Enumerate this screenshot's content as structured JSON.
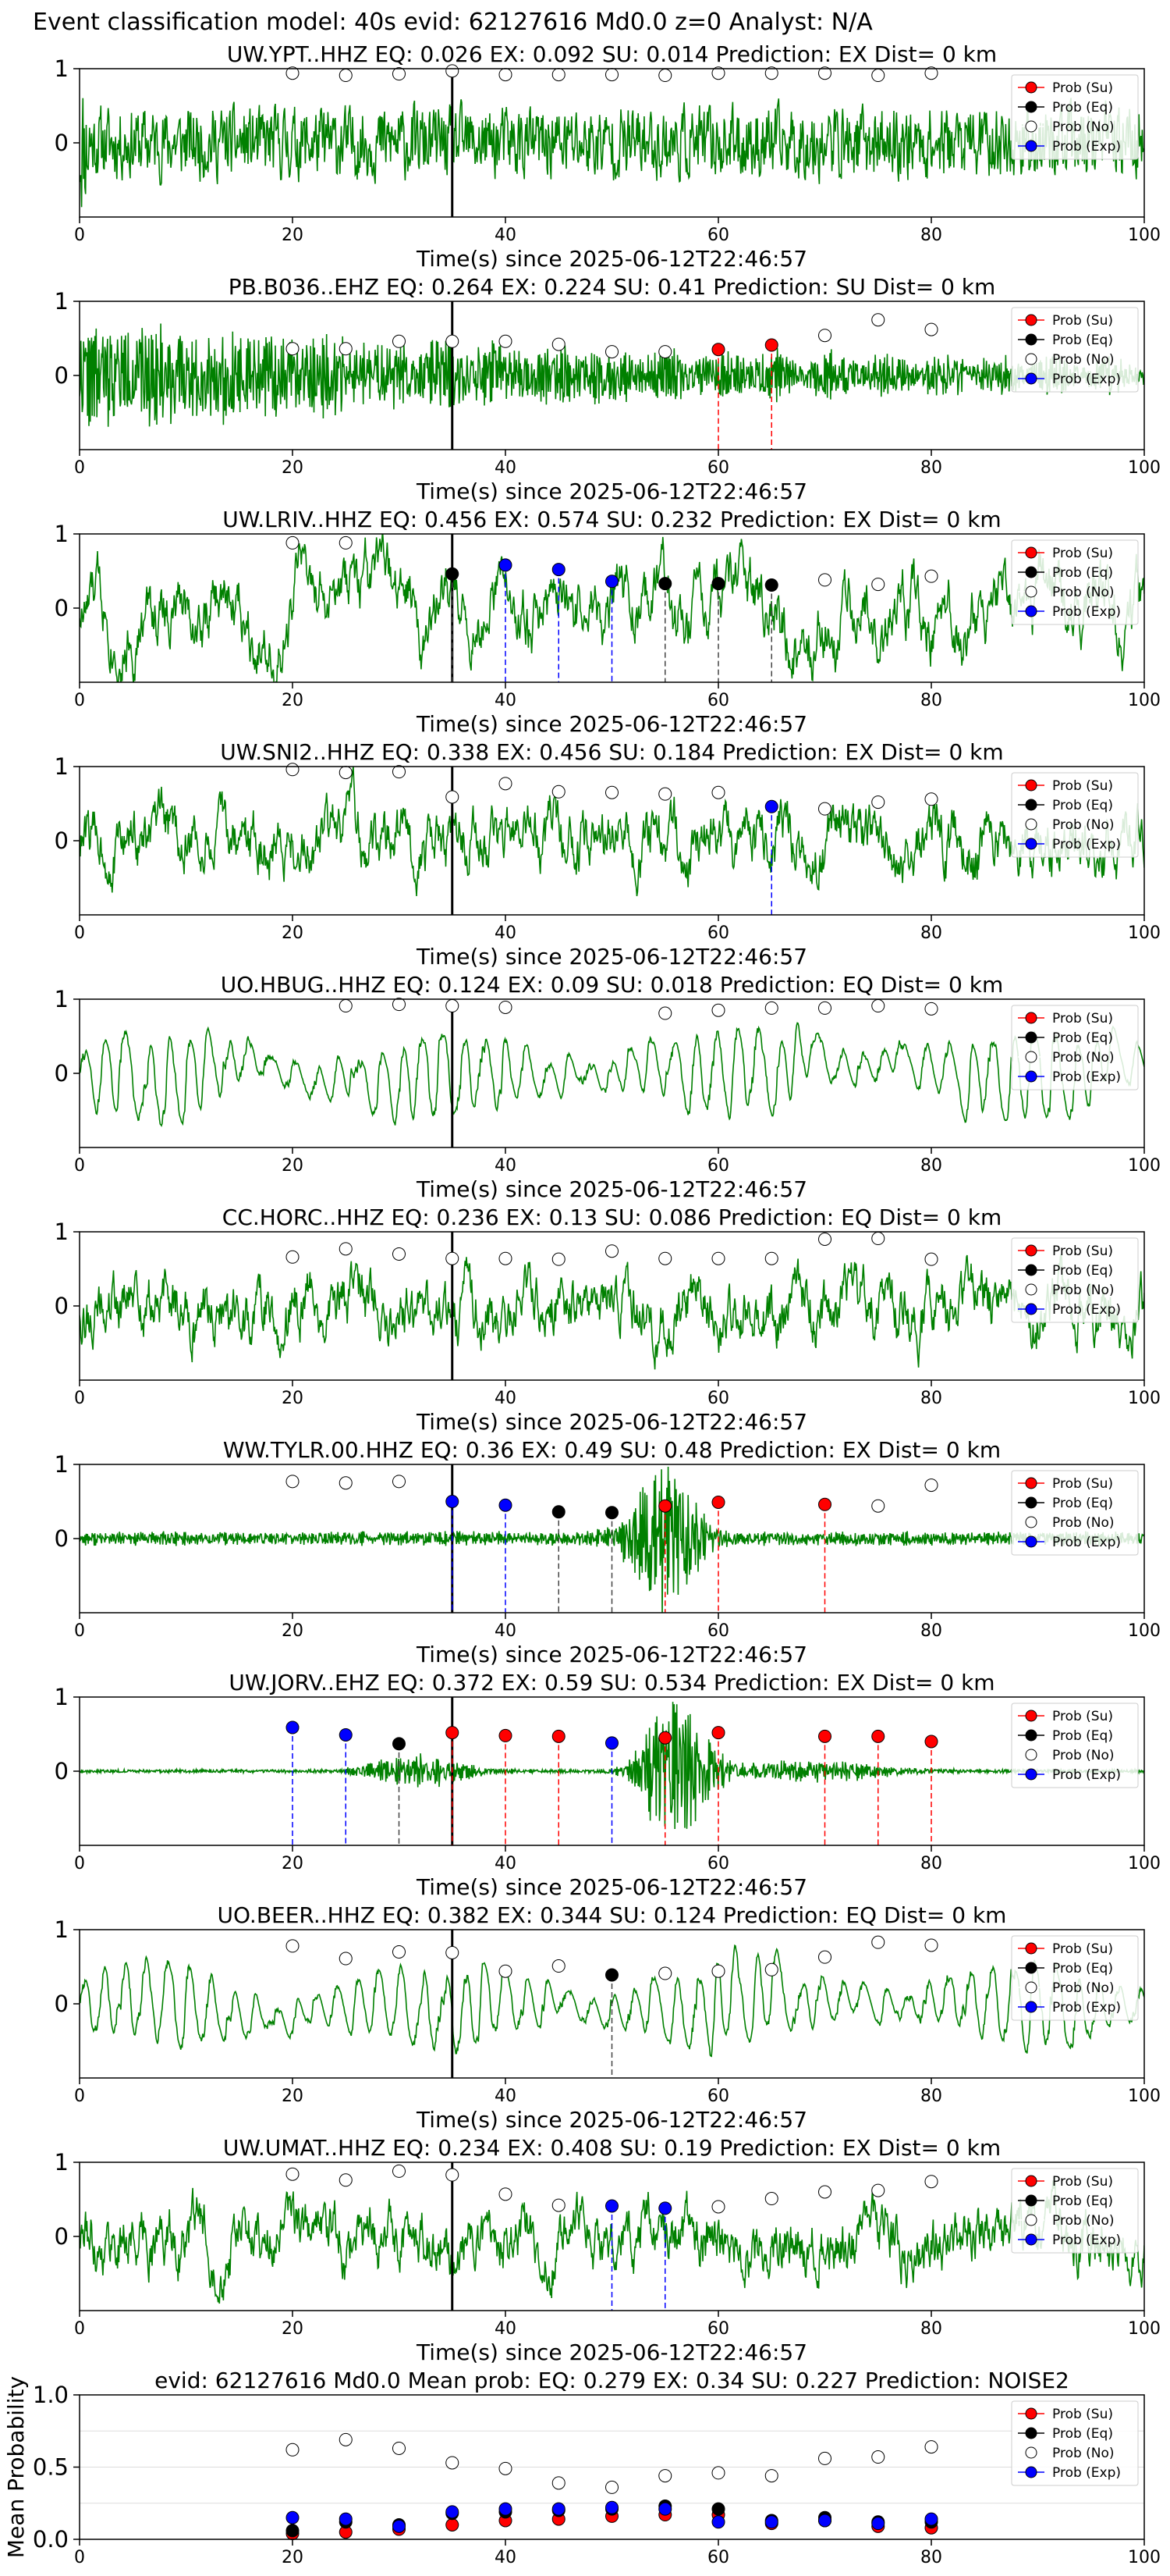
{
  "figure_title": "Event classification model: 40s evid: 62127616 Md0.0 z=0 Analyst: N/A",
  "colors": {
    "waveform": "#008000",
    "su": "#ff0000",
    "eq": "#000000",
    "no": "#ffffff",
    "exp": "#0000ff",
    "origin_line": "#000000"
  },
  "legend_labels": [
    "Prob (Su)",
    "Prob (Eq)",
    "Prob (No)",
    "Prob (Exp)"
  ],
  "chart_data": [
    {
      "type": "line",
      "title": "UW.YPT..HHZ   EQ: 0.026  EX: 0.092  SU: 0.014   Prediction: EX    Dist= 0 km",
      "xlabel": "Time(s) since 2025-06-12T22:46:57",
      "xlim": [
        0,
        100
      ],
      "ylim": [
        -1,
        1
      ],
      "xticks": [
        0,
        20,
        40,
        60,
        80,
        100
      ],
      "yticks": [
        0,
        1
      ],
      "origin_time": 35,
      "legend": "right",
      "seed": 11,
      "trace_style": "noise_ramp",
      "prob_points": [
        {
          "x": 20,
          "y": 0.94,
          "class": "no"
        },
        {
          "x": 25,
          "y": 0.91,
          "class": "no"
        },
        {
          "x": 30,
          "y": 0.93,
          "class": "no"
        },
        {
          "x": 35,
          "y": 0.97,
          "class": "no"
        },
        {
          "x": 40,
          "y": 0.92,
          "class": "no"
        },
        {
          "x": 45,
          "y": 0.92,
          "class": "no"
        },
        {
          "x": 50,
          "y": 0.92,
          "class": "no"
        },
        {
          "x": 55,
          "y": 0.91,
          "class": "no"
        },
        {
          "x": 60,
          "y": 0.94,
          "class": "no"
        },
        {
          "x": 65,
          "y": 0.94,
          "class": "no"
        },
        {
          "x": 70,
          "y": 0.94,
          "class": "no"
        },
        {
          "x": 75,
          "y": 0.91,
          "class": "no"
        },
        {
          "x": 80,
          "y": 0.94,
          "class": "no"
        }
      ]
    },
    {
      "type": "line",
      "title": "PB.B036..EHZ   EQ: 0.264  EX: 0.224  SU: 0.41   Prediction: SU    Dist= 0 km",
      "xlabel": "Time(s) since 2025-06-12T22:46:57",
      "xlim": [
        0,
        100
      ],
      "ylim": [
        -1,
        1
      ],
      "xticks": [
        0,
        20,
        40,
        60,
        80,
        100
      ],
      "yticks": [
        0,
        1
      ],
      "origin_time": 35,
      "legend": "right",
      "seed": 22,
      "trace_style": "hf_decay",
      "prob_points": [
        {
          "x": 20,
          "y": 0.36,
          "class": "no"
        },
        {
          "x": 25,
          "y": 0.36,
          "class": "no"
        },
        {
          "x": 30,
          "y": 0.46,
          "class": "no"
        },
        {
          "x": 35,
          "y": 0.46,
          "class": "no"
        },
        {
          "x": 40,
          "y": 0.46,
          "class": "no"
        },
        {
          "x": 45,
          "y": 0.42,
          "class": "no"
        },
        {
          "x": 50,
          "y": 0.32,
          "class": "no"
        },
        {
          "x": 55,
          "y": 0.32,
          "class": "no"
        },
        {
          "x": 60,
          "y": 0.35,
          "class": "su"
        },
        {
          "x": 65,
          "y": 0.41,
          "class": "su"
        },
        {
          "x": 70,
          "y": 0.54,
          "class": "no"
        },
        {
          "x": 75,
          "y": 0.75,
          "class": "no"
        },
        {
          "x": 80,
          "y": 0.62,
          "class": "no"
        }
      ]
    },
    {
      "type": "line",
      "title": "UW.LRIV..HHZ   EQ: 0.456  EX: 0.574  SU: 0.232   Prediction: EX    Dist= 0 km",
      "xlabel": "Time(s) since 2025-06-12T22:46:57",
      "xlim": [
        0,
        100
      ],
      "ylim": [
        -1,
        1
      ],
      "xticks": [
        0,
        20,
        40,
        60,
        80,
        100
      ],
      "yticks": [
        0,
        1
      ],
      "origin_time": 35,
      "legend": "right",
      "seed": 33,
      "trace_style": "lowfreq",
      "prob_points": [
        {
          "x": 20,
          "y": 0.88,
          "class": "no"
        },
        {
          "x": 25,
          "y": 0.88,
          "class": "no"
        },
        {
          "x": 35,
          "y": 0.46,
          "class": "eq"
        },
        {
          "x": 40,
          "y": 0.58,
          "class": "exp"
        },
        {
          "x": 45,
          "y": 0.52,
          "class": "exp"
        },
        {
          "x": 50,
          "y": 0.36,
          "class": "exp"
        },
        {
          "x": 55,
          "y": 0.33,
          "class": "eq"
        },
        {
          "x": 60,
          "y": 0.33,
          "class": "eq"
        },
        {
          "x": 65,
          "y": 0.31,
          "class": "eq"
        },
        {
          "x": 70,
          "y": 0.38,
          "class": "no"
        },
        {
          "x": 75,
          "y": 0.32,
          "class": "no"
        },
        {
          "x": 80,
          "y": 0.43,
          "class": "no"
        }
      ]
    },
    {
      "type": "line",
      "title": "UW.SNI2..HHZ   EQ: 0.338  EX: 0.456  SU: 0.184   Prediction: EX    Dist= 0 km",
      "xlabel": "Time(s) since 2025-06-12T22:46:57",
      "xlim": [
        0,
        100
      ],
      "ylim": [
        -1,
        1
      ],
      "xticks": [
        0,
        20,
        40,
        60,
        80,
        100
      ],
      "yticks": [
        0,
        1
      ],
      "origin_time": 35,
      "legend": "right",
      "seed": 44,
      "trace_style": "medium",
      "prob_points": [
        {
          "x": 20,
          "y": 0.96,
          "class": "no"
        },
        {
          "x": 25,
          "y": 0.92,
          "class": "no"
        },
        {
          "x": 30,
          "y": 0.93,
          "class": "no"
        },
        {
          "x": 35,
          "y": 0.59,
          "class": "no"
        },
        {
          "x": 40,
          "y": 0.77,
          "class": "no"
        },
        {
          "x": 45,
          "y": 0.66,
          "class": "no"
        },
        {
          "x": 50,
          "y": 0.65,
          "class": "no"
        },
        {
          "x": 55,
          "y": 0.63,
          "class": "no"
        },
        {
          "x": 60,
          "y": 0.65,
          "class": "no"
        },
        {
          "x": 65,
          "y": 0.46,
          "class": "exp"
        },
        {
          "x": 70,
          "y": 0.43,
          "class": "no"
        },
        {
          "x": 75,
          "y": 0.52,
          "class": "no"
        },
        {
          "x": 80,
          "y": 0.56,
          "class": "no"
        }
      ]
    },
    {
      "type": "line",
      "title": "UO.HBUG..HHZ   EQ: 0.124  EX: 0.09  SU: 0.018   Prediction: EQ    Dist= 0 km",
      "xlabel": "Time(s) since 2025-06-12T22:46:57",
      "xlim": [
        0,
        100
      ],
      "ylim": [
        -1,
        1
      ],
      "xticks": [
        0,
        20,
        40,
        60,
        80,
        100
      ],
      "yticks": [
        0,
        1
      ],
      "origin_time": 35,
      "legend": "right",
      "seed": 55,
      "trace_style": "smooth",
      "prob_points": [
        {
          "x": 25,
          "y": 0.91,
          "class": "no"
        },
        {
          "x": 30,
          "y": 0.93,
          "class": "no"
        },
        {
          "x": 35,
          "y": 0.91,
          "class": "no"
        },
        {
          "x": 40,
          "y": 0.89,
          "class": "no"
        },
        {
          "x": 55,
          "y": 0.81,
          "class": "no"
        },
        {
          "x": 60,
          "y": 0.85,
          "class": "no"
        },
        {
          "x": 65,
          "y": 0.88,
          "class": "no"
        },
        {
          "x": 70,
          "y": 0.88,
          "class": "no"
        },
        {
          "x": 75,
          "y": 0.91,
          "class": "no"
        },
        {
          "x": 80,
          "y": 0.87,
          "class": "no"
        }
      ]
    },
    {
      "type": "line",
      "title": "CC.HORC..HHZ   EQ: 0.236  EX: 0.13  SU: 0.086   Prediction: EQ    Dist= 0 km",
      "xlabel": "Time(s) since 2025-06-12T22:46:57",
      "xlim": [
        0,
        100
      ],
      "ylim": [
        -1,
        1
      ],
      "xticks": [
        0,
        20,
        40,
        60,
        80,
        100
      ],
      "yticks": [
        0,
        1
      ],
      "origin_time": 35,
      "legend": "right",
      "seed": 66,
      "trace_style": "medium",
      "prob_points": [
        {
          "x": 20,
          "y": 0.66,
          "class": "no"
        },
        {
          "x": 25,
          "y": 0.77,
          "class": "no"
        },
        {
          "x": 30,
          "y": 0.7,
          "class": "no"
        },
        {
          "x": 35,
          "y": 0.64,
          "class": "no"
        },
        {
          "x": 40,
          "y": 0.64,
          "class": "no"
        },
        {
          "x": 45,
          "y": 0.63,
          "class": "no"
        },
        {
          "x": 50,
          "y": 0.74,
          "class": "no"
        },
        {
          "x": 55,
          "y": 0.64,
          "class": "no"
        },
        {
          "x": 60,
          "y": 0.64,
          "class": "no"
        },
        {
          "x": 65,
          "y": 0.64,
          "class": "no"
        },
        {
          "x": 70,
          "y": 0.9,
          "class": "no"
        },
        {
          "x": 75,
          "y": 0.91,
          "class": "no"
        },
        {
          "x": 80,
          "y": 0.63,
          "class": "no"
        }
      ]
    },
    {
      "type": "line",
      "title": "WW.TYLR.00.HHZ   EQ: 0.36  EX: 0.49  SU: 0.48   Prediction: EX    Dist= 0 km",
      "xlabel": "Time(s) since 2025-06-12T22:46:57",
      "xlim": [
        0,
        100
      ],
      "ylim": [
        -1,
        1
      ],
      "xticks": [
        0,
        20,
        40,
        60,
        80,
        100
      ],
      "yticks": [
        0,
        1
      ],
      "origin_time": 35,
      "legend": "right",
      "seed": 77,
      "trace_style": "burst",
      "prob_points": [
        {
          "x": 20,
          "y": 0.77,
          "class": "no"
        },
        {
          "x": 25,
          "y": 0.75,
          "class": "no"
        },
        {
          "x": 30,
          "y": 0.77,
          "class": "no"
        },
        {
          "x": 35,
          "y": 0.5,
          "class": "exp"
        },
        {
          "x": 40,
          "y": 0.45,
          "class": "exp"
        },
        {
          "x": 45,
          "y": 0.36,
          "class": "eq"
        },
        {
          "x": 50,
          "y": 0.35,
          "class": "eq"
        },
        {
          "x": 55,
          "y": 0.44,
          "class": "su"
        },
        {
          "x": 60,
          "y": 0.49,
          "class": "su"
        },
        {
          "x": 70,
          "y": 0.46,
          "class": "su"
        },
        {
          "x": 75,
          "y": 0.44,
          "class": "no"
        },
        {
          "x": 80,
          "y": 0.72,
          "class": "no"
        }
      ]
    },
    {
      "type": "line",
      "title": "UW.JORV..EHZ   EQ: 0.372  EX: 0.59  SU: 0.534   Prediction: EX    Dist= 0 km",
      "xlabel": "Time(s) since 2025-06-12T22:46:57",
      "xlim": [
        0,
        100
      ],
      "ylim": [
        -1,
        1
      ],
      "xticks": [
        0,
        20,
        40,
        60,
        80,
        100
      ],
      "yticks": [
        0,
        1
      ],
      "origin_time": 35,
      "legend": "right",
      "seed": 88,
      "trace_style": "burst_quiet",
      "prob_points": [
        {
          "x": 20,
          "y": 0.59,
          "class": "exp"
        },
        {
          "x": 25,
          "y": 0.49,
          "class": "exp"
        },
        {
          "x": 30,
          "y": 0.37,
          "class": "eq"
        },
        {
          "x": 35,
          "y": 0.52,
          "class": "su"
        },
        {
          "x": 40,
          "y": 0.48,
          "class": "su"
        },
        {
          "x": 45,
          "y": 0.47,
          "class": "su"
        },
        {
          "x": 50,
          "y": 0.38,
          "class": "exp"
        },
        {
          "x": 55,
          "y": 0.45,
          "class": "su"
        },
        {
          "x": 60,
          "y": 0.52,
          "class": "su"
        },
        {
          "x": 70,
          "y": 0.47,
          "class": "su"
        },
        {
          "x": 75,
          "y": 0.47,
          "class": "su"
        },
        {
          "x": 80,
          "y": 0.4,
          "class": "su"
        }
      ]
    },
    {
      "type": "line",
      "title": "UO.BEER..HHZ   EQ: 0.382  EX: 0.344  SU: 0.124   Prediction: EQ    Dist= 0 km",
      "xlabel": "Time(s) since 2025-06-12T22:46:57",
      "xlim": [
        0,
        100
      ],
      "ylim": [
        -1,
        1
      ],
      "xticks": [
        0,
        20,
        40,
        60,
        80,
        100
      ],
      "yticks": [
        0,
        1
      ],
      "origin_time": 35,
      "legend": "right",
      "seed": 99,
      "trace_style": "smooth",
      "prob_points": [
        {
          "x": 20,
          "y": 0.78,
          "class": "no"
        },
        {
          "x": 25,
          "y": 0.61,
          "class": "no"
        },
        {
          "x": 30,
          "y": 0.7,
          "class": "no"
        },
        {
          "x": 35,
          "y": 0.69,
          "class": "no"
        },
        {
          "x": 40,
          "y": 0.44,
          "class": "no"
        },
        {
          "x": 45,
          "y": 0.51,
          "class": "no"
        },
        {
          "x": 50,
          "y": 0.39,
          "class": "eq"
        },
        {
          "x": 55,
          "y": 0.41,
          "class": "no"
        },
        {
          "x": 60,
          "y": 0.44,
          "class": "no"
        },
        {
          "x": 65,
          "y": 0.46,
          "class": "no"
        },
        {
          "x": 70,
          "y": 0.63,
          "class": "no"
        },
        {
          "x": 75,
          "y": 0.83,
          "class": "no"
        },
        {
          "x": 80,
          "y": 0.79,
          "class": "no"
        }
      ]
    },
    {
      "type": "line",
      "title": "UW.UMAT..HHZ   EQ: 0.234  EX: 0.408  SU: 0.19   Prediction: EX    Dist= 0 km",
      "xlabel": "Time(s) since 2025-06-12T22:46:57",
      "xlim": [
        0,
        100
      ],
      "ylim": [
        -1,
        1
      ],
      "xticks": [
        0,
        20,
        40,
        60,
        80,
        100
      ],
      "yticks": [
        0,
        1
      ],
      "origin_time": 35,
      "legend": "right",
      "seed": 111,
      "trace_style": "medium",
      "prob_points": [
        {
          "x": 20,
          "y": 0.84,
          "class": "no"
        },
        {
          "x": 25,
          "y": 0.76,
          "class": "no"
        },
        {
          "x": 30,
          "y": 0.88,
          "class": "no"
        },
        {
          "x": 35,
          "y": 0.83,
          "class": "no"
        },
        {
          "x": 40,
          "y": 0.57,
          "class": "no"
        },
        {
          "x": 45,
          "y": 0.42,
          "class": "no"
        },
        {
          "x": 50,
          "y": 0.41,
          "class": "exp"
        },
        {
          "x": 55,
          "y": 0.38,
          "class": "exp"
        },
        {
          "x": 60,
          "y": 0.4,
          "class": "no"
        },
        {
          "x": 65,
          "y": 0.51,
          "class": "no"
        },
        {
          "x": 70,
          "y": 0.6,
          "class": "no"
        },
        {
          "x": 75,
          "y": 0.62,
          "class": "no"
        },
        {
          "x": 80,
          "y": 0.74,
          "class": "no"
        }
      ]
    },
    {
      "type": "scatter",
      "title": "evid: 62127616  Md0.0   Mean prob:   EQ: 0.279  EX: 0.34  SU: 0.227   Prediction: NOISE2",
      "ylabel": "Mean Probability",
      "xlim": [
        0,
        100
      ],
      "ylim": [
        0,
        1
      ],
      "xticks": [
        0,
        20,
        40,
        60,
        80,
        100
      ],
      "yticks": [
        0.0,
        0.5,
        1.0
      ],
      "ytick_labels": [
        "0.0",
        "0.5",
        "1.0"
      ],
      "legend": "right",
      "x": [
        20,
        25,
        30,
        35,
        40,
        45,
        50,
        55,
        60,
        65,
        70,
        75,
        80
      ],
      "series": [
        {
          "name": "Prob (Su)",
          "class": "su",
          "values": [
            0.04,
            0.05,
            0.07,
            0.1,
            0.13,
            0.14,
            0.16,
            0.17,
            0.17,
            0.11,
            0.13,
            0.09,
            0.08
          ]
        },
        {
          "name": "Prob (Eq)",
          "class": "eq",
          "values": [
            0.06,
            0.12,
            0.1,
            0.18,
            0.19,
            0.2,
            0.21,
            0.23,
            0.21,
            0.13,
            0.15,
            0.12,
            0.12
          ]
        },
        {
          "name": "Prob (No)",
          "class": "no",
          "values": [
            0.62,
            0.69,
            0.63,
            0.53,
            0.49,
            0.39,
            0.36,
            0.44,
            0.46,
            0.44,
            0.56,
            0.57,
            0.64
          ]
        },
        {
          "name": "Prob (Exp)",
          "class": "exp",
          "values": [
            0.15,
            0.14,
            0.09,
            0.19,
            0.21,
            0.21,
            0.22,
            0.21,
            0.12,
            0.12,
            0.13,
            0.11,
            0.14
          ]
        }
      ]
    }
  ]
}
